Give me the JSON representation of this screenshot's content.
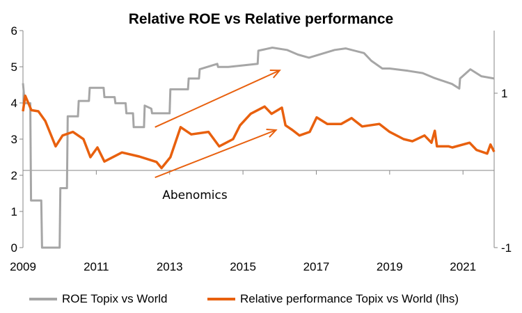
{
  "chart_data": {
    "type": "line",
    "title": "Relative ROE vs Relative performance",
    "xlabel": "",
    "ylabel": "",
    "xlim": [
      2009,
      2021.85
    ],
    "x_ticks": [
      "2009",
      "2011",
      "2013",
      "2015",
      "2017",
      "2019",
      "2021"
    ],
    "ylim_left": [
      0,
      6
    ],
    "y_ticks_left": [
      "0",
      "1",
      "2",
      "3",
      "4",
      "5",
      "6"
    ],
    "ylim_right": [
      -1,
      1.8
    ],
    "y_ticks_right": [
      "-1",
      "1"
    ],
    "grid": false,
    "legend_position": "bottom",
    "series": [
      {
        "name": "ROE Topix vs World",
        "axis": "right",
        "color": "#a6a6a6",
        "x": [
          2009.0,
          2009.05,
          2009.2,
          2009.22,
          2009.5,
          2009.52,
          2010.0,
          2010.02,
          2010.2,
          2010.22,
          2010.5,
          2010.52,
          2010.8,
          2010.82,
          2011.2,
          2011.22,
          2011.5,
          2011.52,
          2011.8,
          2011.82,
          2012.0,
          2012.02,
          2012.3,
          2012.32,
          2012.5,
          2012.52,
          2013.0,
          2013.02,
          2013.5,
          2013.52,
          2013.8,
          2013.82,
          2014.3,
          2014.32,
          2014.6,
          2015.4,
          2015.42,
          2015.8,
          2016.2,
          2016.5,
          2016.8,
          2017.5,
          2017.8,
          2018.3,
          2018.5,
          2018.8,
          2019.0,
          2019.5,
          2019.9,
          2020.2,
          2020.7,
          2020.9,
          2020.92,
          2021.2,
          2021.5,
          2021.85
        ],
        "y": [
          1.13,
          0.87,
          0.87,
          -0.39,
          -0.39,
          -1.0,
          -1.0,
          -0.23,
          -0.23,
          0.7,
          0.7,
          0.9,
          0.9,
          1.07,
          1.07,
          0.95,
          0.95,
          0.87,
          0.87,
          0.74,
          0.74,
          0.56,
          0.56,
          0.84,
          0.8,
          0.74,
          0.74,
          1.05,
          1.05,
          1.19,
          1.19,
          1.31,
          1.38,
          1.34,
          1.34,
          1.38,
          1.55,
          1.59,
          1.56,
          1.5,
          1.46,
          1.56,
          1.58,
          1.52,
          1.42,
          1.32,
          1.32,
          1.29,
          1.26,
          1.2,
          1.12,
          1.06,
          1.19,
          1.31,
          1.22,
          1.19
        ]
      },
      {
        "name": "Relative performance Topix vs World (lhs)",
        "axis": "left",
        "color": "#e8600e",
        "x": [
          2009.0,
          2009.06,
          2009.23,
          2009.42,
          2009.61,
          2009.89,
          2010.08,
          2010.36,
          2010.65,
          2010.84,
          2011.03,
          2011.22,
          2011.7,
          2012.17,
          2012.64,
          2012.78,
          2013.02,
          2013.3,
          2013.59,
          2014.06,
          2014.35,
          2014.73,
          2014.92,
          2015.21,
          2015.59,
          2015.78,
          2016.06,
          2016.16,
          2016.35,
          2016.54,
          2016.82,
          2017.01,
          2017.3,
          2017.68,
          2017.96,
          2018.25,
          2018.72,
          2019.0,
          2019.38,
          2019.62,
          2019.95,
          2020.14,
          2020.23,
          2020.29,
          2020.61,
          2020.71,
          2021.18,
          2021.37,
          2021.66,
          2021.75,
          2021.85
        ],
        "y": [
          3.77,
          4.2,
          3.8,
          3.77,
          3.5,
          2.8,
          3.1,
          3.2,
          3.0,
          2.5,
          2.77,
          2.38,
          2.63,
          2.52,
          2.37,
          2.2,
          2.5,
          3.33,
          3.13,
          3.2,
          2.8,
          3.0,
          3.38,
          3.7,
          3.9,
          3.7,
          3.87,
          3.38,
          3.25,
          3.1,
          3.2,
          3.6,
          3.42,
          3.42,
          3.58,
          3.35,
          3.42,
          3.2,
          3.0,
          2.94,
          3.1,
          2.9,
          3.23,
          2.8,
          2.8,
          2.77,
          2.9,
          2.7,
          2.6,
          2.85,
          2.65
        ]
      }
    ],
    "annotations": [
      {
        "type": "arrow",
        "color": "#e8600e",
        "axis": "left",
        "from": [
          2012.6,
          3.33
        ],
        "to": [
          2016.0,
          4.9
        ]
      },
      {
        "type": "arrow",
        "color": "#e8600e",
        "axis": "left",
        "from": [
          2012.6,
          1.94
        ],
        "to": [
          2015.9,
          3.25
        ]
      },
      {
        "type": "text",
        "text": "Abenomics",
        "axis": "left",
        "at": [
          2012.8,
          1.35
        ]
      }
    ]
  }
}
